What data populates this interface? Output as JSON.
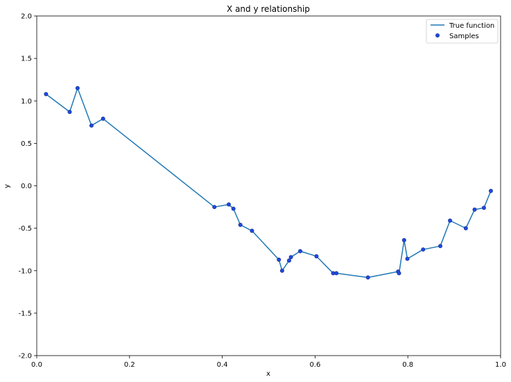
{
  "chart_data": {
    "type": "line",
    "title": "X and y relationship",
    "xlabel": "x",
    "ylabel": "y",
    "xlim": [
      0.0,
      1.0
    ],
    "ylim": [
      -2.0,
      2.0
    ],
    "xticks": [
      "0.0",
      "0.2",
      "0.4",
      "0.6",
      "0.8",
      "1.0"
    ],
    "yticks": [
      "-2.0",
      "-1.5",
      "-1.0",
      "-0.5",
      "0.0",
      "0.5",
      "1.0",
      "1.5",
      "2.0"
    ],
    "grid": false,
    "legend_position": "top-right",
    "colors": {
      "line": "#1f77b4",
      "marker_fill": "#1f48e8",
      "marker_edge": "#1a3a8f",
      "axis": "#000000"
    },
    "series": [
      {
        "name": "True function",
        "kind": "line"
      },
      {
        "name": "Samples",
        "kind": "scatter"
      }
    ],
    "x": [
      0.02,
      0.071,
      0.088,
      0.118,
      0.143,
      0.383,
      0.414,
      0.424,
      0.439,
      0.464,
      0.522,
      0.529,
      0.544,
      0.548,
      0.568,
      0.603,
      0.639,
      0.646,
      0.714,
      0.779,
      0.781,
      0.792,
      0.799,
      0.833,
      0.87,
      0.891,
      0.925,
      0.944,
      0.964,
      0.979
    ],
    "y": [
      1.08,
      0.87,
      1.15,
      0.71,
      0.79,
      -0.25,
      -0.22,
      -0.27,
      -0.46,
      -0.53,
      -0.87,
      -1.0,
      -0.88,
      -0.84,
      -0.77,
      -0.83,
      -1.03,
      -1.03,
      -1.08,
      -1.01,
      -1.03,
      -0.64,
      -0.86,
      -0.75,
      -0.71,
      -0.41,
      -0.5,
      -0.28,
      -0.26,
      -0.06
    ]
  }
}
